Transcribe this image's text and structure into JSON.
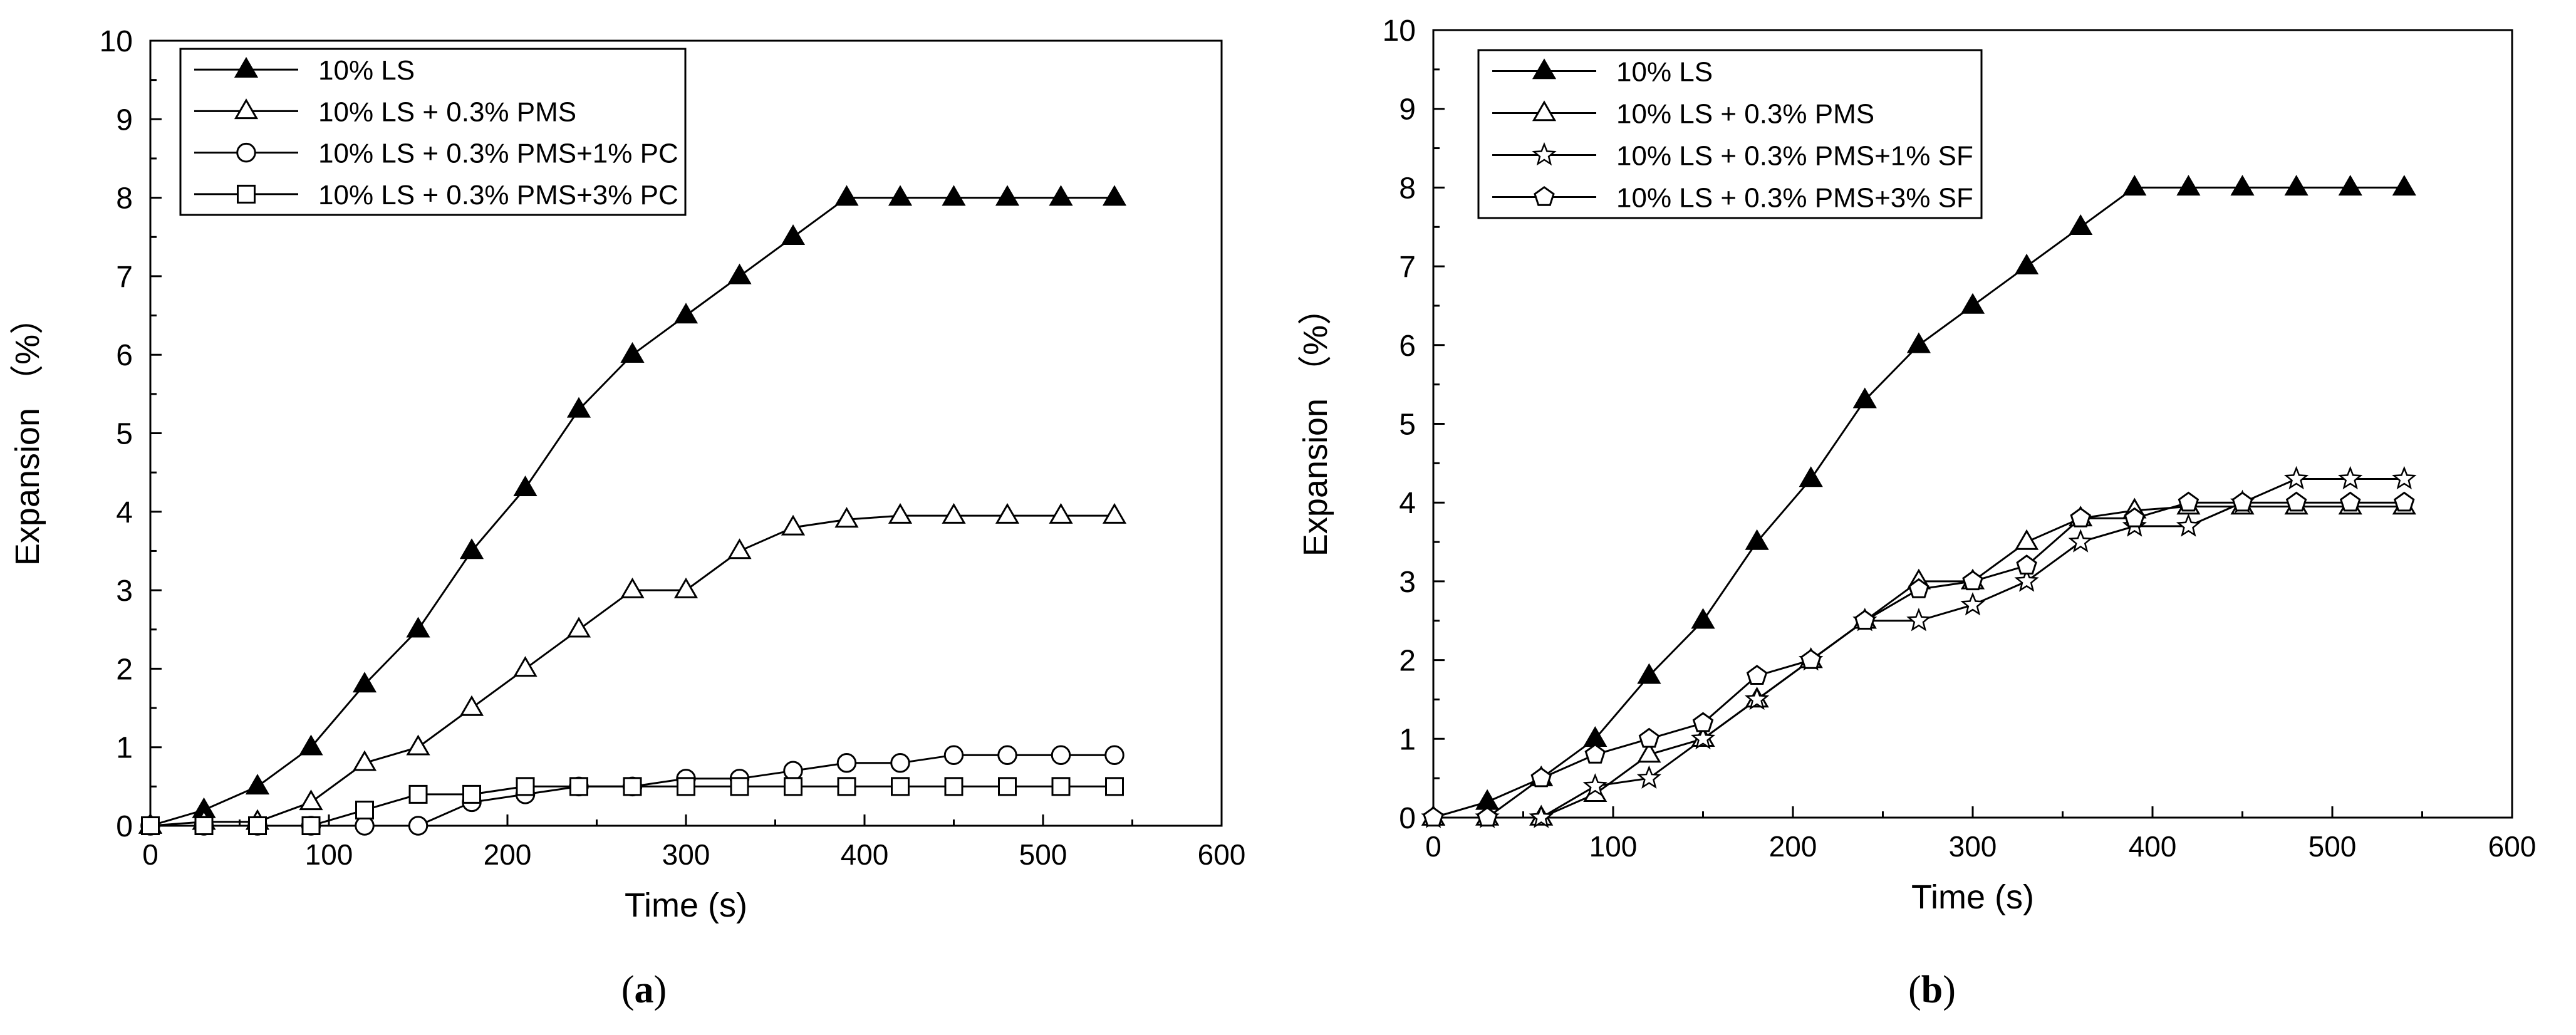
{
  "chart_data": [
    {
      "type": "line",
      "panel_label": "a",
      "xlabel": "Time (s)",
      "ylabel": "Expansion （%）",
      "xlim": [
        0,
        600
      ],
      "ylim": [
        0,
        10
      ],
      "xticks": [
        "0",
        "100",
        "200",
        "300",
        "400",
        "500",
        "600"
      ],
      "yticks": [
        "0",
        "1",
        "2",
        "3",
        "4",
        "5",
        "6",
        "7",
        "8",
        "9",
        "10"
      ],
      "legend_position": "top-left",
      "x": [
        0,
        30,
        60,
        90,
        120,
        150,
        180,
        210,
        240,
        270,
        300,
        330,
        360,
        390,
        420,
        450,
        480,
        510,
        540
      ],
      "series": [
        {
          "name": "10% LS",
          "marker": "triangle-filled",
          "values": [
            0,
            0.2,
            0.5,
            1.0,
            1.8,
            2.5,
            3.5,
            4.3,
            5.3,
            6.0,
            6.5,
            7.0,
            7.5,
            8.0,
            8.0,
            8.0,
            8.0,
            8.0,
            8.0
          ]
        },
        {
          "name": "10% LS + 0.3% PMS",
          "marker": "triangle-open",
          "values": [
            0,
            0.05,
            0.05,
            0.3,
            0.8,
            1.0,
            1.5,
            2.0,
            2.5,
            3.0,
            3.0,
            3.5,
            3.8,
            3.9,
            3.95,
            3.95,
            3.95,
            3.95,
            3.95
          ]
        },
        {
          "name": "10% LS + 0.3% PMS+1% PC",
          "marker": "circle-open",
          "values": [
            0,
            0,
            0,
            0,
            0,
            0,
            0.3,
            0.4,
            0.5,
            0.5,
            0.6,
            0.6,
            0.7,
            0.8,
            0.8,
            0.9,
            0.9,
            0.9,
            0.9
          ]
        },
        {
          "name": "10% LS + 0.3% PMS+3% PC",
          "marker": "square-open",
          "values": [
            0,
            0,
            0,
            0,
            0.2,
            0.4,
            0.4,
            0.5,
            0.5,
            0.5,
            0.5,
            0.5,
            0.5,
            0.5,
            0.5,
            0.5,
            0.5,
            0.5,
            0.5
          ]
        }
      ]
    },
    {
      "type": "line",
      "panel_label": "b",
      "xlabel": "Time (s)",
      "ylabel": "Expansion （%）",
      "xlim": [
        0,
        600
      ],
      "ylim": [
        0,
        10
      ],
      "xticks": [
        "0",
        "100",
        "200",
        "300",
        "400",
        "500",
        "600"
      ],
      "yticks": [
        "0",
        "1",
        "2",
        "3",
        "4",
        "5",
        "6",
        "7",
        "8",
        "9",
        "10"
      ],
      "legend_position": "top-left",
      "x": [
        0,
        30,
        60,
        90,
        120,
        150,
        180,
        210,
        240,
        270,
        300,
        330,
        360,
        390,
        420,
        450,
        480,
        510,
        540
      ],
      "series": [
        {
          "name": "10% LS",
          "marker": "triangle-filled",
          "values": [
            0,
            0.2,
            0.5,
            1.0,
            1.8,
            2.5,
            3.5,
            4.3,
            5.3,
            6.0,
            6.5,
            7.0,
            7.5,
            8.0,
            8.0,
            8.0,
            8.0,
            8.0,
            8.0
          ]
        },
        {
          "name": "10% LS + 0.3% PMS",
          "marker": "triangle-open",
          "values": [
            0,
            0,
            0,
            0.3,
            0.8,
            1.0,
            1.5,
            2.0,
            2.5,
            3.0,
            3.0,
            3.5,
            3.8,
            3.9,
            3.95,
            3.95,
            3.95,
            3.95,
            3.95
          ]
        },
        {
          "name": "10% LS + 0.3% PMS+1% SF",
          "marker": "star-open",
          "values": [
            0,
            0,
            0,
            0.4,
            0.5,
            1.0,
            1.5,
            2.0,
            2.5,
            2.5,
            2.7,
            3.0,
            3.5,
            3.7,
            3.7,
            4.0,
            4.3,
            4.3,
            4.3
          ]
        },
        {
          "name": "10% LS + 0.3% PMS+3% SF",
          "marker": "pentagon-open",
          "values": [
            0,
            0,
            0.5,
            0.8,
            1.0,
            1.2,
            1.8,
            2.0,
            2.5,
            2.9,
            3.0,
            3.2,
            3.8,
            3.8,
            4.0,
            4.0,
            4.0,
            4.0,
            4.0
          ]
        }
      ]
    }
  ],
  "captions": [
    {
      "open": "(",
      "label": "a",
      "close": ")"
    },
    {
      "open": "(",
      "label": "b",
      "close": ")"
    }
  ]
}
